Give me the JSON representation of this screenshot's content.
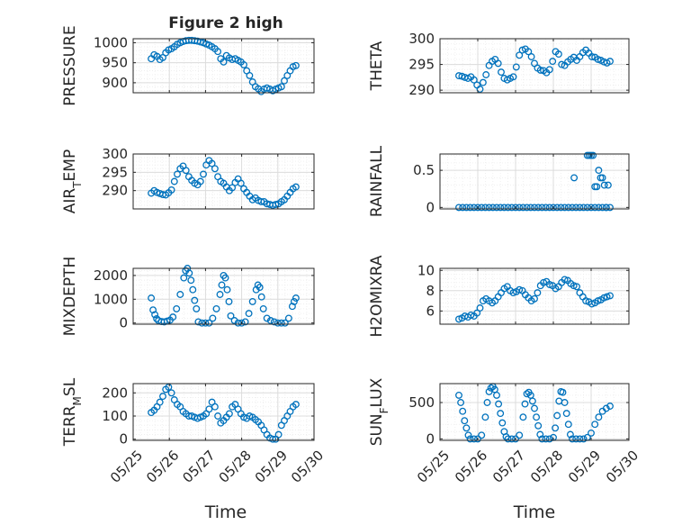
{
  "figure_title": "Figure 2 high",
  "colors": {
    "marker": "#0072BD",
    "axis": "#262626",
    "grid": "#dcdcdc",
    "minor_grid": "#ececec"
  },
  "chart_data": [
    {
      "type": "scatter",
      "marker": "circle",
      "ylabel": "PRESSURE",
      "ylim": [
        875,
        1010
      ],
      "yticks": [
        900,
        950,
        1000
      ],
      "xlim": [
        0,
        5
      ],
      "grid": true,
      "x": [
        0.5,
        0.58,
        0.66,
        0.74,
        0.82,
        0.9,
        0.98,
        1.06,
        1.14,
        1.22,
        1.3,
        1.38,
        1.46,
        1.54,
        1.62,
        1.7,
        1.78,
        1.86,
        1.94,
        2.02,
        2.1,
        2.18,
        2.26,
        2.34,
        2.42,
        2.5,
        2.58,
        2.66,
        2.74,
        2.82,
        2.9,
        2.98,
        3.06,
        3.14,
        3.22,
        3.3,
        3.38,
        3.46,
        3.54,
        3.62,
        3.7,
        3.78,
        3.86,
        3.94,
        4.02,
        4.1,
        4.18,
        4.26,
        4.34,
        4.42,
        4.5
      ],
      "y": [
        960,
        970,
        966,
        958,
        963,
        975,
        982,
        985,
        990,
        996,
        1000,
        1003,
        1005,
        1006,
        1006,
        1005,
        1004,
        1002,
        1000,
        997,
        994,
        990,
        985,
        978,
        960,
        952,
        968,
        962,
        958,
        960,
        956,
        952,
        945,
        930,
        918,
        902,
        890,
        885,
        878,
        884,
        887,
        884,
        880,
        884,
        887,
        890,
        905,
        918,
        930,
        940,
        943
      ]
    },
    {
      "type": "scatter",
      "marker": "circle",
      "ylabel": "THETA",
      "ylim": [
        289.5,
        300
      ],
      "yticks": [
        290,
        295,
        300
      ],
      "xlim": [
        0,
        5
      ],
      "grid": true,
      "x": [
        0.5,
        0.58,
        0.66,
        0.74,
        0.82,
        0.9,
        0.98,
        1.06,
        1.14,
        1.22,
        1.3,
        1.38,
        1.46,
        1.54,
        1.62,
        1.7,
        1.78,
        1.86,
        1.94,
        2.02,
        2.1,
        2.18,
        2.26,
        2.34,
        2.42,
        2.5,
        2.58,
        2.66,
        2.74,
        2.82,
        2.9,
        2.98,
        3.06,
        3.14,
        3.22,
        3.3,
        3.38,
        3.46,
        3.54,
        3.62,
        3.7,
        3.78,
        3.86,
        3.94,
        4.02,
        4.1,
        4.18,
        4.26,
        4.34,
        4.42,
        4.5
      ],
      "y": [
        292.8,
        292.7,
        292.5,
        292.3,
        292.6,
        292.0,
        291.0,
        290.2,
        291.5,
        293.0,
        294.8,
        295.6,
        296.0,
        295.2,
        293.5,
        292.3,
        292.0,
        292.3,
        292.6,
        294.5,
        296.8,
        297.8,
        298.0,
        297.5,
        296.5,
        295.2,
        294.3,
        293.9,
        293.8,
        293.4,
        294.0,
        295.6,
        297.5,
        297.0,
        295.0,
        294.8,
        295.5,
        296.0,
        296.4,
        295.8,
        296.5,
        297.3,
        297.8,
        297.2,
        296.5,
        296.4,
        296.0,
        295.8,
        295.5,
        295.3,
        295.6
      ]
    },
    {
      "type": "scatter",
      "marker": "circle",
      "ylabel": "AIR_TEMP",
      "ylim": [
        285,
        300
      ],
      "yticks": [
        290,
        295,
        300
      ],
      "xlim": [
        0,
        5
      ],
      "grid": true,
      "x": [
        0.5,
        0.58,
        0.66,
        0.74,
        0.82,
        0.9,
        0.98,
        1.06,
        1.14,
        1.22,
        1.3,
        1.38,
        1.46,
        1.54,
        1.62,
        1.7,
        1.78,
        1.86,
        1.94,
        2.02,
        2.1,
        2.18,
        2.26,
        2.34,
        2.42,
        2.5,
        2.58,
        2.66,
        2.74,
        2.82,
        2.9,
        2.98,
        3.06,
        3.14,
        3.22,
        3.3,
        3.38,
        3.46,
        3.54,
        3.62,
        3.7,
        3.78,
        3.86,
        3.94,
        4.02,
        4.1,
        4.18,
        4.26,
        4.34,
        4.42,
        4.5
      ],
      "y": [
        289.3,
        290.0,
        289.5,
        289.2,
        288.9,
        288.8,
        289.4,
        290.2,
        292.5,
        294.5,
        296.0,
        296.7,
        295.5,
        293.8,
        292.8,
        292.0,
        291.6,
        292.5,
        294.5,
        297.0,
        298.2,
        297.4,
        296.0,
        293.8,
        292.5,
        292.0,
        291.0,
        290.0,
        290.8,
        292.2,
        293.2,
        292.0,
        290.5,
        289.5,
        288.5,
        287.5,
        288.0,
        287.3,
        287.0,
        287.0,
        286.4,
        286.2,
        286.0,
        286.2,
        286.4,
        287.0,
        287.5,
        288.5,
        289.5,
        290.5,
        291.0
      ]
    },
    {
      "type": "scatter",
      "marker": "circle",
      "ylabel": "RAINFALL",
      "ylim": [
        -0.02,
        0.72
      ],
      "yticks": [
        0,
        0.5
      ],
      "xlim": [
        0,
        5
      ],
      "grid": true,
      "x": [
        0.5,
        0.6,
        0.7,
        0.8,
        0.9,
        1.0,
        1.1,
        1.2,
        1.3,
        1.4,
        1.5,
        1.6,
        1.7,
        1.8,
        1.9,
        2.0,
        2.1,
        2.2,
        2.3,
        2.4,
        2.5,
        2.6,
        2.7,
        2.8,
        2.9,
        3.0,
        3.1,
        3.2,
        3.3,
        3.4,
        3.5,
        3.6,
        3.7,
        3.8,
        3.9,
        4.0,
        4.1,
        4.2,
        4.3,
        4.4,
        4.5,
        3.55,
        3.9,
        3.95,
        4.0,
        4.05,
        4.1,
        4.15,
        4.2,
        4.25,
        4.3,
        4.35,
        4.4,
        4.45
      ],
      "y": [
        0,
        0,
        0,
        0,
        0,
        0,
        0,
        0,
        0,
        0,
        0,
        0,
        0,
        0,
        0,
        0,
        0,
        0,
        0,
        0,
        0,
        0,
        0,
        0,
        0,
        0,
        0,
        0,
        0,
        0,
        0,
        0,
        0,
        0,
        0,
        0,
        0,
        0,
        0,
        0,
        0,
        0.4,
        0.7,
        0.7,
        0.7,
        0.7,
        0.28,
        0.28,
        0.5,
        0.4,
        0.4,
        0.3,
        0.0,
        0.3
      ]
    },
    {
      "type": "scatter",
      "marker": "circle",
      "ylabel": "MIXDEPTH",
      "ylim": [
        -50,
        2300
      ],
      "yticks": [
        0,
        1000,
        2000
      ],
      "xlim": [
        0,
        5
      ],
      "grid": true,
      "x": [
        0.5,
        0.55,
        0.6,
        0.65,
        0.7,
        0.78,
        0.86,
        0.94,
        1.02,
        1.1,
        1.2,
        1.3,
        1.4,
        1.45,
        1.5,
        1.55,
        1.6,
        1.65,
        1.7,
        1.75,
        1.8,
        1.9,
        2.0,
        2.1,
        2.2,
        2.3,
        2.4,
        2.45,
        2.5,
        2.55,
        2.6,
        2.65,
        2.7,
        2.8,
        2.9,
        3.0,
        3.1,
        3.2,
        3.3,
        3.4,
        3.45,
        3.5,
        3.55,
        3.6,
        3.7,
        3.8,
        3.9,
        4.0,
        4.1,
        4.2,
        4.3,
        4.4,
        4.45,
        4.5
      ],
      "y": [
        1050,
        550,
        350,
        180,
        100,
        60,
        50,
        80,
        120,
        250,
        600,
        1200,
        1900,
        2200,
        2300,
        2100,
        1800,
        1400,
        950,
        600,
        50,
        0,
        0,
        0,
        200,
        600,
        1200,
        1600,
        2000,
        1900,
        1400,
        900,
        300,
        100,
        0,
        0,
        50,
        400,
        900,
        1400,
        1600,
        1500,
        1100,
        600,
        200,
        100,
        50,
        0,
        0,
        0,
        200,
        700,
        900,
        1050
      ]
    },
    {
      "type": "scatter",
      "marker": "circle",
      "ylabel": "H2OMIXRA",
      "ylim": [
        4.7,
        10.2
      ],
      "yticks": [
        6,
        8,
        10
      ],
      "xlim": [
        0,
        5
      ],
      "grid": true,
      "x": [
        0.5,
        0.58,
        0.66,
        0.74,
        0.82,
        0.9,
        0.98,
        1.06,
        1.14,
        1.22,
        1.3,
        1.38,
        1.46,
        1.54,
        1.62,
        1.7,
        1.78,
        1.86,
        1.94,
        2.02,
        2.1,
        2.18,
        2.26,
        2.34,
        2.42,
        2.5,
        2.58,
        2.66,
        2.74,
        2.82,
        2.9,
        2.98,
        3.06,
        3.14,
        3.22,
        3.3,
        3.38,
        3.46,
        3.54,
        3.62,
        3.7,
        3.78,
        3.86,
        3.94,
        4.02,
        4.1,
        4.18,
        4.26,
        4.34,
        4.42,
        4.5
      ],
      "y": [
        5.2,
        5.3,
        5.5,
        5.4,
        5.6,
        5.5,
        5.8,
        6.3,
        7.0,
        7.2,
        7.0,
        6.8,
        7.0,
        7.4,
        7.8,
        8.2,
        8.4,
        8.0,
        7.8,
        7.9,
        8.1,
        8.0,
        7.6,
        7.3,
        7.0,
        7.2,
        7.8,
        8.5,
        8.8,
        8.9,
        8.6,
        8.5,
        8.2,
        8.4,
        8.8,
        9.1,
        9.0,
        8.7,
        8.5,
        8.4,
        7.8,
        7.4,
        7.0,
        6.9,
        6.7,
        6.8,
        7.0,
        7.1,
        7.3,
        7.4,
        7.5
      ]
    },
    {
      "type": "scatter",
      "marker": "circle",
      "ylabel": "TERR_MSL",
      "ylim": [
        -5,
        240
      ],
      "yticks": [
        0,
        100,
        200
      ],
      "xlim": [
        0,
        5
      ],
      "grid": true,
      "x": [
        0.5,
        0.58,
        0.66,
        0.74,
        0.82,
        0.9,
        0.98,
        1.06,
        1.14,
        1.22,
        1.3,
        1.38,
        1.46,
        1.54,
        1.62,
        1.7,
        1.78,
        1.86,
        1.94,
        2.02,
        2.1,
        2.18,
        2.26,
        2.34,
        2.42,
        2.5,
        2.58,
        2.66,
        2.74,
        2.82,
        2.9,
        2.98,
        3.06,
        3.14,
        3.22,
        3.3,
        3.38,
        3.46,
        3.54,
        3.62,
        3.7,
        3.78,
        3.86,
        3.94,
        4.02,
        4.1,
        4.18,
        4.26,
        4.34,
        4.42,
        4.5
      ],
      "y": [
        115,
        125,
        140,
        160,
        185,
        215,
        225,
        200,
        170,
        150,
        140,
        120,
        110,
        100,
        100,
        95,
        90,
        95,
        100,
        110,
        130,
        160,
        140,
        100,
        70,
        80,
        95,
        110,
        140,
        150,
        130,
        110,
        95,
        90,
        100,
        95,
        85,
        75,
        60,
        40,
        20,
        5,
        0,
        0,
        20,
        60,
        80,
        100,
        120,
        140,
        150
      ]
    },
    {
      "type": "scatter",
      "marker": "circle",
      "ylabel": "SUN_FLUX",
      "ylim": [
        -20,
        760
      ],
      "yticks": [
        0,
        500
      ],
      "xlim": [
        0,
        5
      ],
      "grid": true,
      "x": [
        0.5,
        0.55,
        0.6,
        0.65,
        0.7,
        0.75,
        0.8,
        0.9,
        1.0,
        1.1,
        1.2,
        1.25,
        1.3,
        1.35,
        1.4,
        1.45,
        1.5,
        1.55,
        1.6,
        1.65,
        1.7,
        1.75,
        1.8,
        1.9,
        2.0,
        2.1,
        2.2,
        2.25,
        2.3,
        2.35,
        2.4,
        2.45,
        2.5,
        2.55,
        2.6,
        2.65,
        2.7,
        2.8,
        2.9,
        3.0,
        3.05,
        3.1,
        3.15,
        3.2,
        3.25,
        3.3,
        3.35,
        3.4,
        3.45,
        3.5,
        3.6,
        3.7,
        3.8,
        3.9,
        4.0,
        4.1,
        4.2,
        4.3,
        4.4,
        4.5
      ],
      "y": [
        600,
        500,
        380,
        250,
        150,
        50,
        0,
        0,
        0,
        50,
        300,
        500,
        650,
        700,
        720,
        680,
        600,
        480,
        350,
        220,
        100,
        30,
        0,
        0,
        0,
        50,
        300,
        480,
        620,
        640,
        600,
        520,
        420,
        300,
        180,
        60,
        0,
        0,
        0,
        20,
        150,
        320,
        520,
        650,
        640,
        500,
        350,
        200,
        60,
        0,
        0,
        0,
        0,
        20,
        80,
        200,
        300,
        380,
        420,
        450
      ]
    }
  ],
  "xaxis": {
    "ticklabels": [
      "05/25",
      "05/26",
      "05/27",
      "05/28",
      "05/29",
      "05/30"
    ],
    "xlabel": "Time"
  }
}
